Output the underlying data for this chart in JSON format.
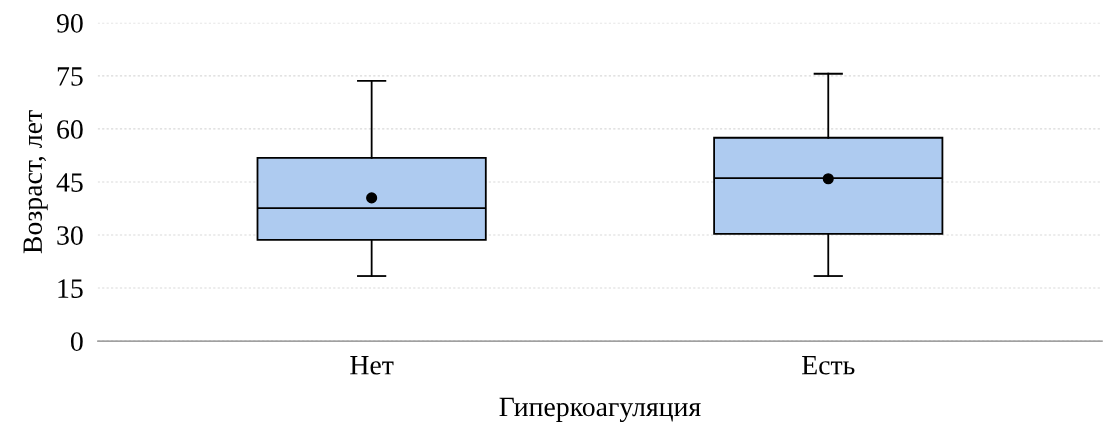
{
  "chart_data": {
    "type": "box",
    "xlabel": "Гиперкоагуляция",
    "ylabel": "Возраст, лет",
    "categories": [
      "Нет",
      "Есть"
    ],
    "boxes": [
      {
        "low": 18.4,
        "q1": 28.6,
        "median": 37.6,
        "q3": 51.8,
        "high": 73.6,
        "mean": 40.5
      },
      {
        "low": 18.4,
        "q1": 30.3,
        "median": 46.1,
        "q3": 57.5,
        "high": 75.6,
        "mean": 45.9
      }
    ],
    "color": "#aecbf0",
    "ylim": [
      0,
      90
    ],
    "yticks": [
      0,
      15,
      30,
      45,
      60,
      75,
      90
    ],
    "grid": "y"
  }
}
